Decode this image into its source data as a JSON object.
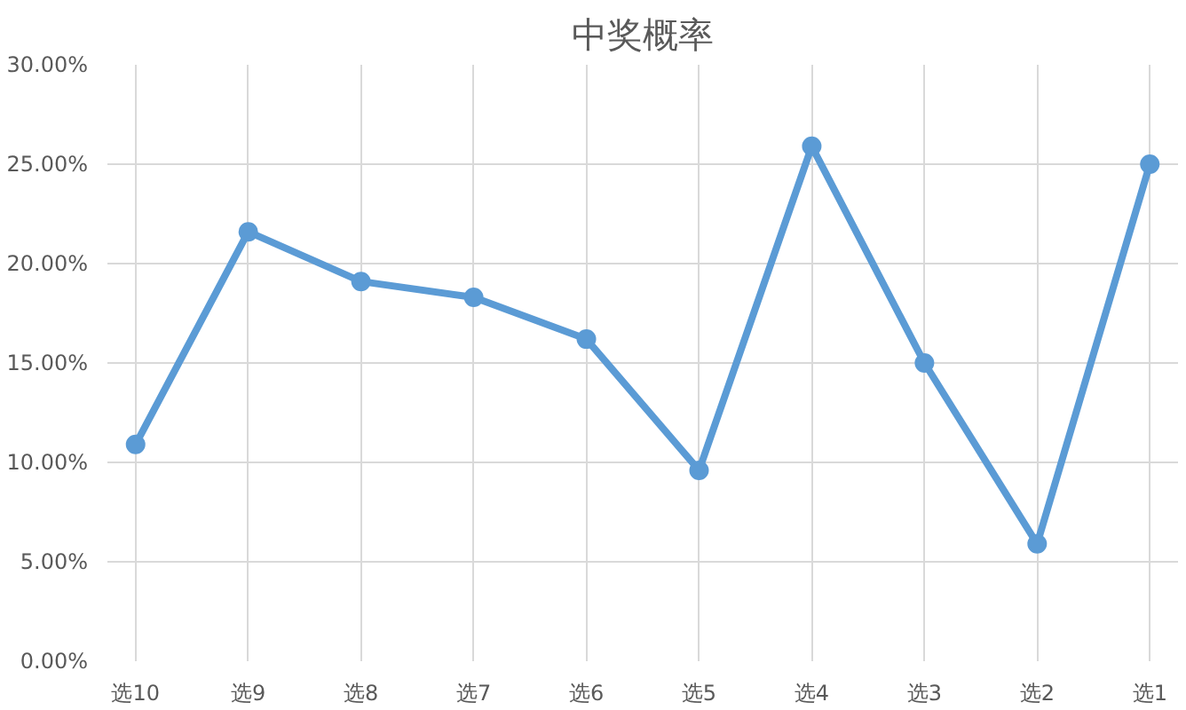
{
  "chart_data": {
    "type": "line",
    "title": "中奖概率",
    "categories": [
      "选10",
      "选9",
      "选8",
      "选7",
      "选6",
      "选5",
      "选4",
      "选3",
      "选2",
      "选1"
    ],
    "series": [
      {
        "color": "#5b9bd5",
        "values": [
          10.9,
          21.6,
          19.1,
          18.3,
          16.2,
          9.6,
          25.9,
          15.0,
          5.9,
          25.0
        ]
      }
    ],
    "ylim": [
      0,
      30
    ],
    "yticks": [
      {
        "value": 0,
        "label": "0.00%"
      },
      {
        "value": 5,
        "label": "5.00%"
      },
      {
        "value": 10,
        "label": "10.00%"
      },
      {
        "value": 15,
        "label": "15.00%"
      },
      {
        "value": 20,
        "label": "20.00%"
      },
      {
        "value": 25,
        "label": "25.00%"
      },
      {
        "value": 30,
        "label": "30.00%"
      }
    ],
    "grid": true,
    "marker": "circle",
    "line_style": "solid"
  }
}
